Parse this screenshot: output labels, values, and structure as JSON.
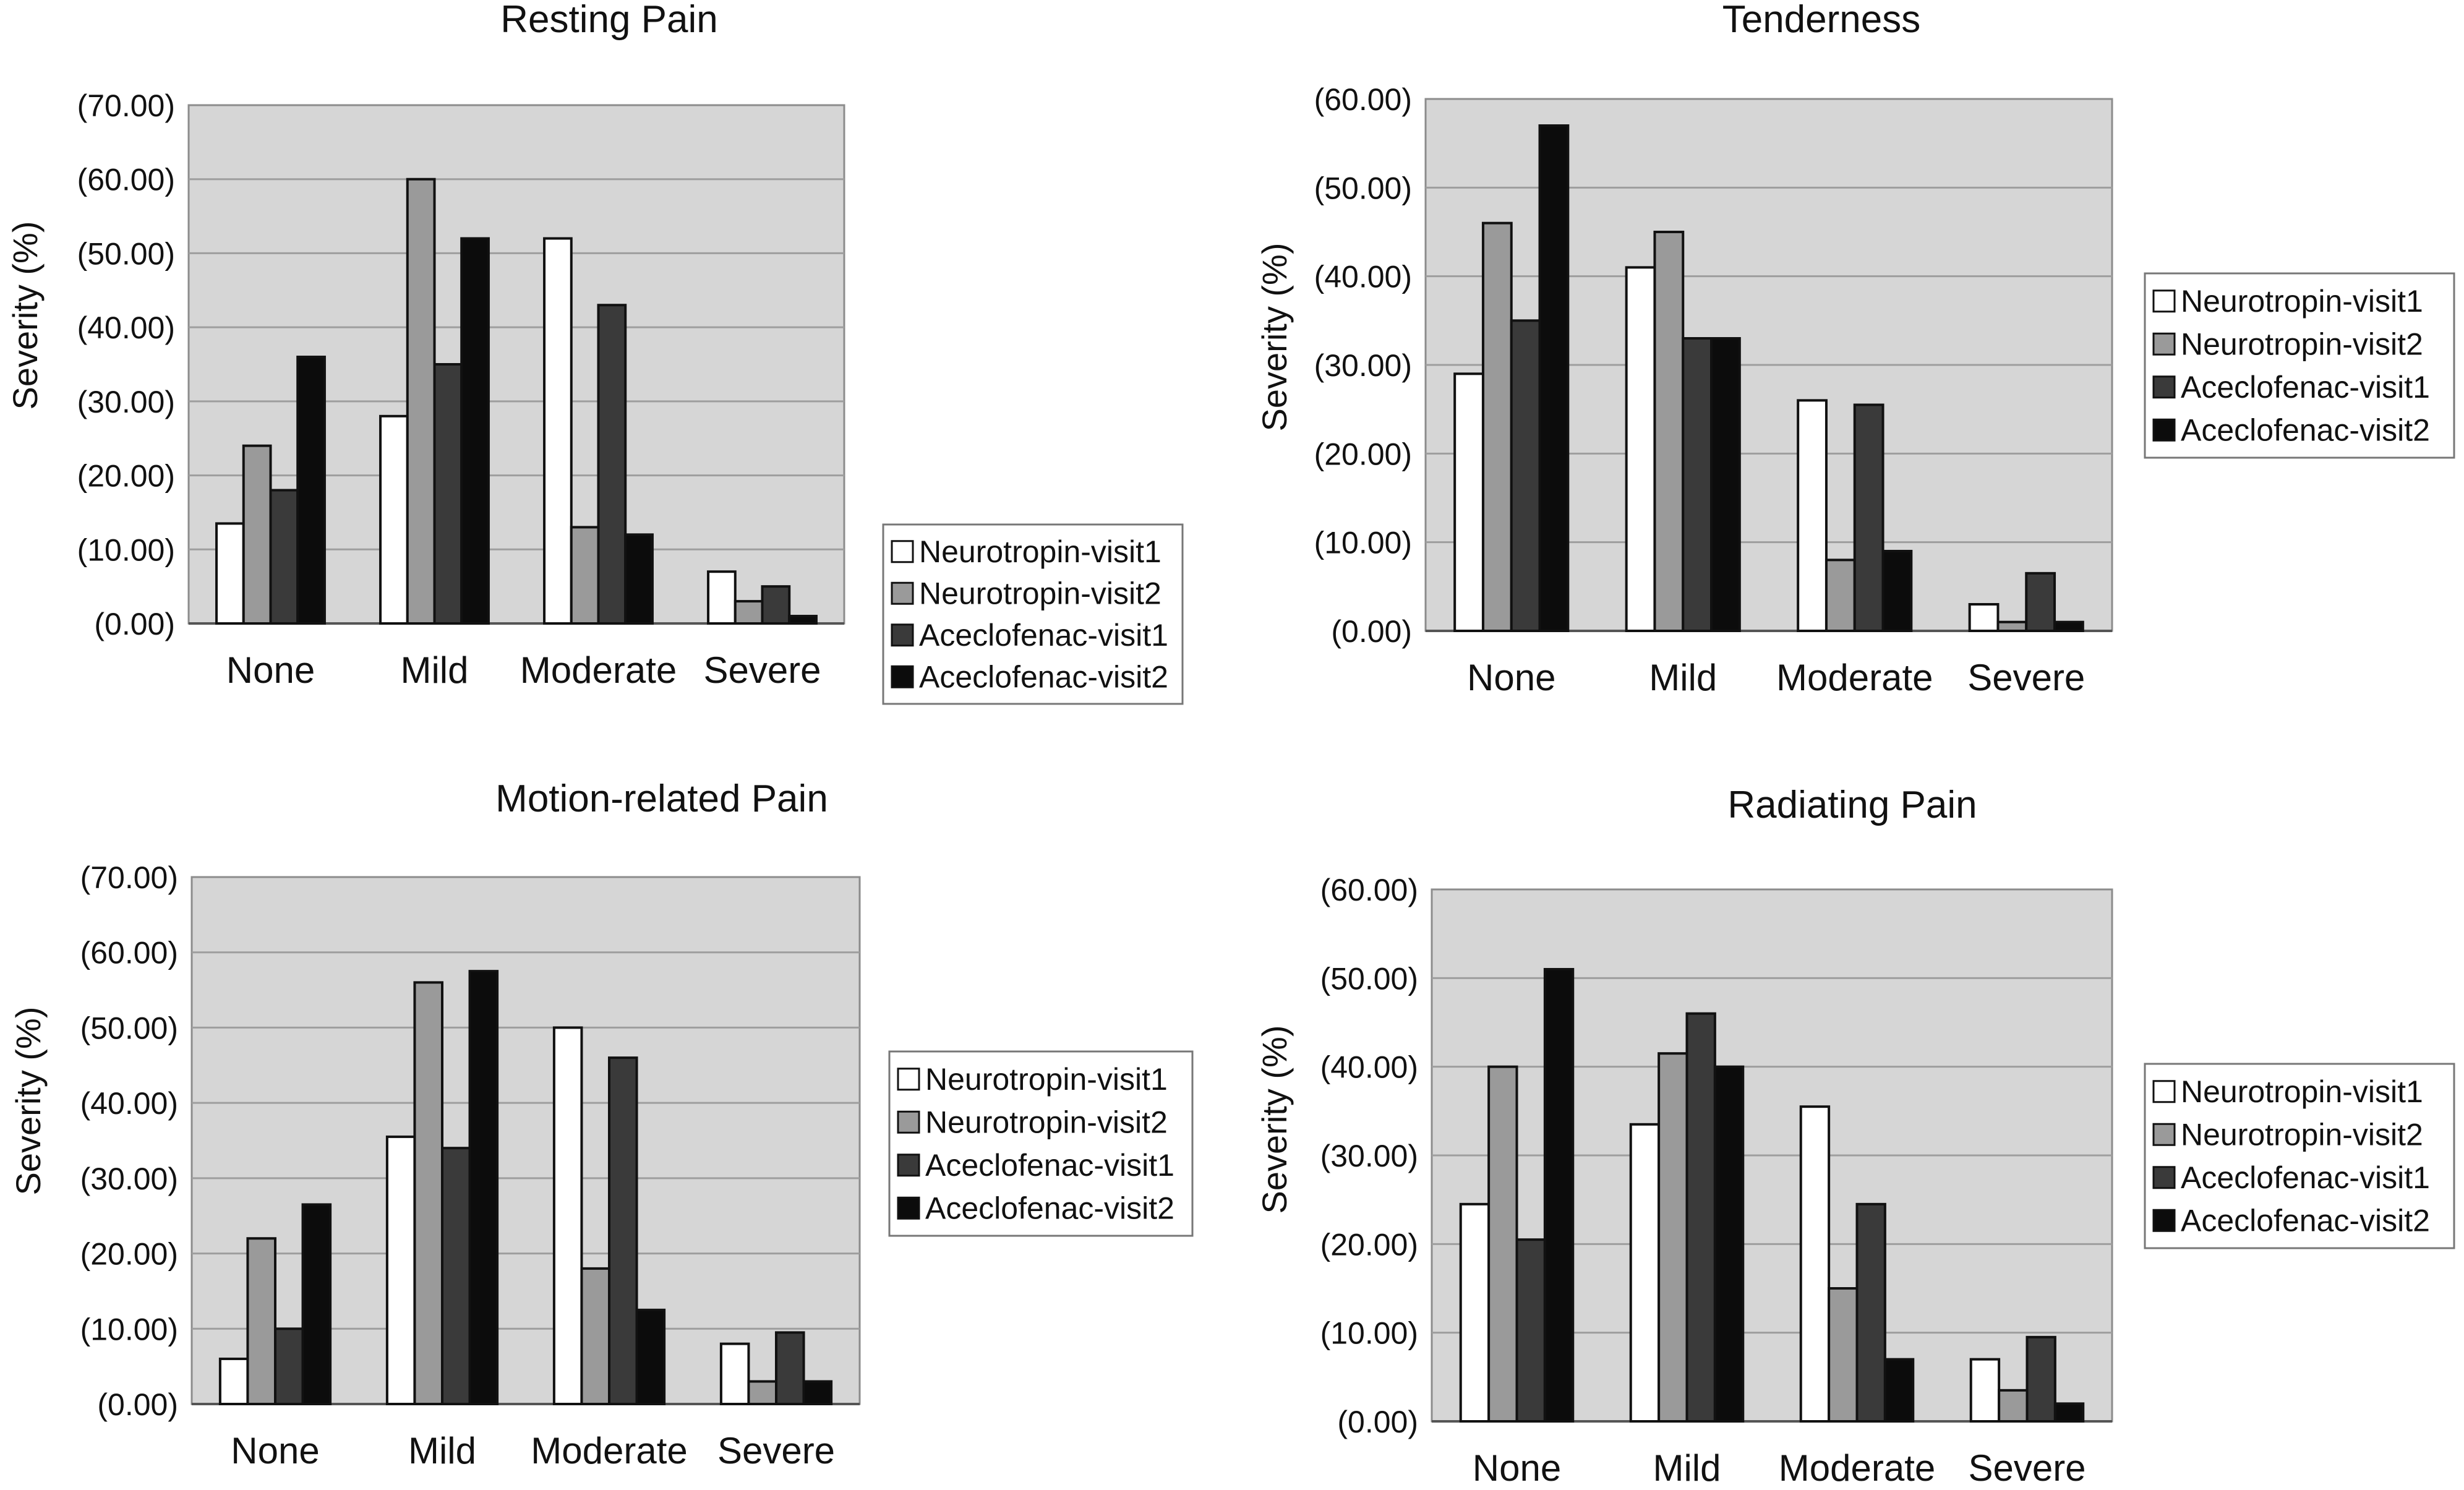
{
  "series_styles": [
    {
      "fill": "#ffffff"
    },
    {
      "fill": "#9a9a9a"
    },
    {
      "fill": "#3a3a3a"
    },
    {
      "fill": "#0c0c0c"
    }
  ],
  "chart_data": [
    {
      "type": "bar",
      "title": "Resting Pain",
      "xlabel": "",
      "ylabel": "Severity (%)",
      "categories": [
        "None",
        "Mild",
        "Moderate",
        "Severe"
      ],
      "yticks": [
        "(0.00)",
        "(10.00)",
        "(20.00)",
        "(30.00)",
        "(40.00)",
        "(50.00)",
        "(60.00)",
        "(70.00)"
      ],
      "ylim": [
        0,
        70
      ],
      "grid": true,
      "legend": "right-bottom",
      "series": [
        {
          "name": "Neurotropin-visit1",
          "values": [
            13.5,
            28,
            52,
            7
          ]
        },
        {
          "name": "Neurotropin-visit2",
          "values": [
            24,
            60,
            13,
            3
          ]
        },
        {
          "name": "Aceclofenac-visit1",
          "values": [
            18,
            35,
            43,
            5
          ]
        },
        {
          "name": "Aceclofenac-visit2",
          "values": [
            36,
            52,
            12,
            1
          ]
        }
      ]
    },
    {
      "type": "bar",
      "title": "Tenderness",
      "xlabel": "",
      "ylabel": "Severity (%)",
      "categories": [
        "None",
        "Mild",
        "Moderate",
        "Severe"
      ],
      "yticks": [
        "(0.00)",
        "(10.00)",
        "(20.00)",
        "(30.00)",
        "(40.00)",
        "(50.00)",
        "(60.00)"
      ],
      "ylim": [
        0,
        60
      ],
      "grid": true,
      "legend": "right",
      "series": [
        {
          "name": "Neurotropin-visit1",
          "values": [
            29,
            41,
            26,
            3
          ]
        },
        {
          "name": "Neurotropin-visit2",
          "values": [
            46,
            45,
            8,
            1
          ]
        },
        {
          "name": "Aceclofenac-visit1",
          "values": [
            35,
            33,
            25.5,
            6.5
          ]
        },
        {
          "name": "Aceclofenac-visit2",
          "values": [
            57,
            33,
            9,
            1
          ]
        }
      ]
    },
    {
      "type": "bar",
      "title": "Motion-related Pain",
      "xlabel": "",
      "ylabel": "Severity (%)",
      "categories": [
        "None",
        "Mild",
        "Moderate",
        "Severe"
      ],
      "yticks": [
        "(0.00)",
        "(10.00)",
        "(20.00)",
        "(30.00)",
        "(40.00)",
        "(50.00)",
        "(60.00)",
        "(70.00)"
      ],
      "ylim": [
        0,
        70
      ],
      "grid": true,
      "legend": "right",
      "series": [
        {
          "name": "Neurotropin-visit1",
          "values": [
            6,
            35.5,
            50,
            8
          ]
        },
        {
          "name": "Neurotropin-visit2",
          "values": [
            22,
            56,
            18,
            3
          ]
        },
        {
          "name": "Aceclofenac-visit1",
          "values": [
            10,
            34,
            46,
            9.5
          ]
        },
        {
          "name": "Aceclofenac-visit2",
          "values": [
            26.5,
            57.5,
            12.5,
            3
          ]
        }
      ]
    },
    {
      "type": "bar",
      "title": "Radiating Pain",
      "xlabel": "",
      "ylabel": "Severity (%)",
      "categories": [
        "None",
        "Mild",
        "Moderate",
        "Severe"
      ],
      "yticks": [
        "(0.00)",
        "(10.00)",
        "(20.00)",
        "(30.00)",
        "(40.00)",
        "(50.00)",
        "(60.00)"
      ],
      "ylim": [
        0,
        60
      ],
      "grid": true,
      "legend": "right",
      "series": [
        {
          "name": "Neurotropin-visit1",
          "values": [
            24.5,
            33.5,
            35.5,
            7
          ]
        },
        {
          "name": "Neurotropin-visit2",
          "values": [
            40,
            41.5,
            15,
            3.5
          ]
        },
        {
          "name": "Aceclofenac-visit1",
          "values": [
            20.5,
            46,
            24.5,
            9.5
          ]
        },
        {
          "name": "Aceclofenac-visit2",
          "values": [
            51,
            40,
            7,
            2
          ]
        }
      ]
    }
  ]
}
